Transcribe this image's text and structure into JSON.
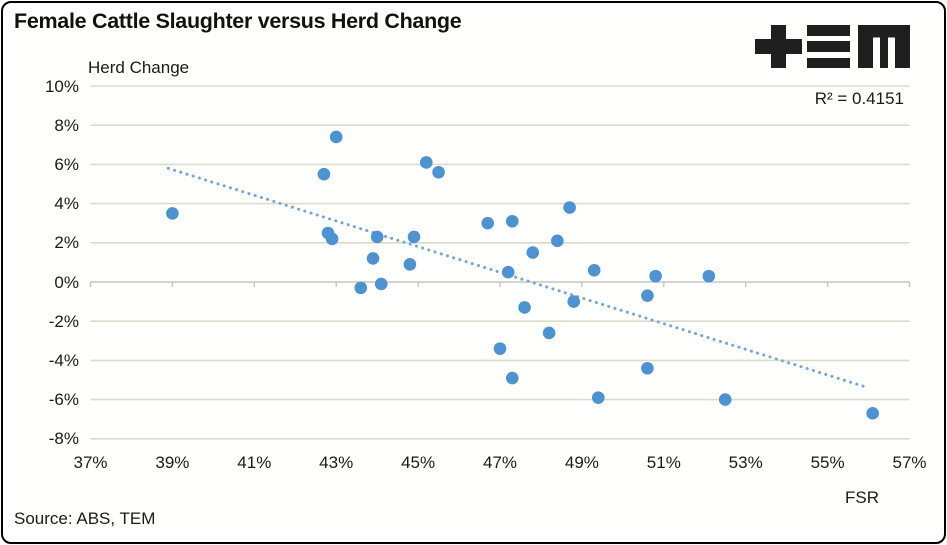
{
  "title": "Female Cattle Slaughter versus Herd Change",
  "logo": {
    "name": "TEM"
  },
  "annotation": {
    "r_squared": "R² = 0.4151"
  },
  "axes": {
    "y_title": "Herd Change",
    "x_title": "FSR",
    "y_tick_labels": [
      "10%",
      "8%",
      "6%",
      "4%",
      "2%",
      "0%",
      "-2%",
      "-4%",
      "-6%",
      "-8%"
    ],
    "x_tick_labels": [
      "37%",
      "39%",
      "41%",
      "43%",
      "45%",
      "47%",
      "49%",
      "51%",
      "53%",
      "55%",
      "57%"
    ]
  },
  "source": "Source: ABS, TEM",
  "chart_data": {
    "type": "scatter",
    "title": "Female Cattle Slaughter versus Herd Change",
    "xlabel": "FSR",
    "ylabel": "Herd Change",
    "xlim": [
      37,
      57
    ],
    "ylim": [
      -8,
      10
    ],
    "x_tick_step": 2,
    "y_tick_step": 2,
    "grid": true,
    "legend": "none",
    "x_unit": "%",
    "y_unit": "%",
    "points": [
      [
        39.0,
        3.5
      ],
      [
        42.7,
        5.5
      ],
      [
        42.8,
        2.5
      ],
      [
        42.9,
        2.2
      ],
      [
        43.0,
        7.4
      ],
      [
        43.6,
        -0.3
      ],
      [
        43.9,
        1.2
      ],
      [
        44.0,
        2.3
      ],
      [
        44.1,
        -0.1
      ],
      [
        44.8,
        0.9
      ],
      [
        44.9,
        2.3
      ],
      [
        45.2,
        6.1
      ],
      [
        45.5,
        5.6
      ],
      [
        46.7,
        3.0
      ],
      [
        47.0,
        -3.4
      ],
      [
        47.2,
        0.5
      ],
      [
        47.3,
        3.1
      ],
      [
        47.3,
        -4.9
      ],
      [
        47.6,
        -1.3
      ],
      [
        47.8,
        1.5
      ],
      [
        48.2,
        -2.6
      ],
      [
        48.4,
        2.1
      ],
      [
        48.7,
        3.8
      ],
      [
        48.8,
        -1.0
      ],
      [
        49.3,
        0.6
      ],
      [
        49.4,
        -5.9
      ],
      [
        50.6,
        -0.7
      ],
      [
        50.6,
        -4.4
      ],
      [
        50.8,
        0.3
      ],
      [
        52.1,
        0.3
      ],
      [
        52.5,
        -6.0
      ],
      [
        56.1,
        -6.7
      ]
    ],
    "trendline": {
      "style": "dotted",
      "x1": 38.9,
      "y1": 5.8,
      "x2": 56.0,
      "y2": -5.4,
      "r_squared": 0.4151
    },
    "colors": {
      "marker": "#4e93d1",
      "trend": "#70a7d7",
      "gridline": "#dbdbc9",
      "axis_line": "#c6c6c0",
      "text": "#1a1a1a"
    }
  }
}
